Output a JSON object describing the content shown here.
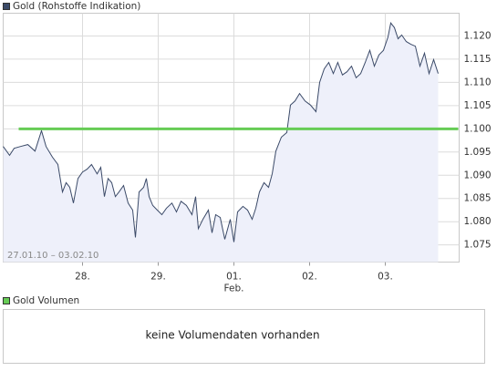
{
  "chart_data": {
    "type": "line",
    "date_range": "27.01.10 – 03.02.10",
    "x": [
      -0.048,
      0.036,
      0.096,
      0.181,
      0.277,
      0.373,
      0.458,
      0.518,
      0.602,
      0.675,
      0.735,
      0.783,
      0.831,
      0.88,
      0.94,
      1.0,
      1.06,
      1.12,
      1.193,
      1.241,
      1.289,
      1.337,
      1.386,
      1.434,
      1.482,
      1.542,
      1.602,
      1.663,
      1.699,
      1.747,
      1.807,
      1.843,
      1.88,
      1.928,
      1.988,
      2.048,
      2.108,
      2.181,
      2.241,
      2.301,
      2.373,
      2.446,
      2.494,
      2.53,
      2.59,
      2.663,
      2.711,
      2.759,
      2.819,
      2.88,
      2.952,
      3.0,
      3.048,
      3.12,
      3.181,
      3.241,
      3.289,
      3.337,
      3.398,
      3.458,
      3.506,
      3.554,
      3.627,
      3.699,
      3.747,
      3.807,
      3.867,
      3.94,
      4.012,
      4.084,
      4.133,
      4.193,
      4.253,
      4.313,
      4.373,
      4.434,
      4.494,
      4.554,
      4.614,
      4.675,
      4.735,
      4.795,
      4.855,
      4.916,
      4.976,
      5.036,
      5.072,
      5.12,
      5.169,
      5.217,
      5.277,
      5.337,
      5.398,
      5.458,
      5.518,
      5.578,
      5.639,
      5.699
    ],
    "series": [
      {
        "name": "Gold (Rohstoffe Indikation)",
        "color": "#3b4a68",
        "fill": "#eef0fa",
        "values": [
          1.0962,
          1.0943,
          1.0958,
          1.0962,
          1.0966,
          1.0952,
          1.0996,
          1.0962,
          1.0939,
          1.0923,
          1.0864,
          1.0884,
          1.0874,
          1.084,
          1.0893,
          1.0907,
          1.0913,
          1.0923,
          1.0903,
          1.0917,
          1.0854,
          1.0893,
          1.0884,
          1.0854,
          1.0864,
          1.0878,
          1.084,
          1.0825,
          1.0766,
          1.0864,
          1.0874,
          1.0893,
          1.0854,
          1.0835,
          1.0825,
          1.0815,
          1.0829,
          1.084,
          1.0821,
          1.0844,
          1.0835,
          1.0815,
          1.0854,
          1.0785,
          1.0805,
          1.0825,
          1.0776,
          1.0815,
          1.0809,
          1.0762,
          1.0805,
          1.0756,
          1.0821,
          1.0833,
          1.0825,
          1.0805,
          1.0829,
          1.0864,
          1.0884,
          1.0874,
          1.0903,
          1.0952,
          1.0982,
          1.0992,
          1.1051,
          1.106,
          1.1076,
          1.106,
          1.1051,
          1.1037,
          1.11,
          1.1129,
          1.1143,
          1.1119,
          1.1143,
          1.1116,
          1.1123,
          1.1135,
          1.111,
          1.1119,
          1.1143,
          1.1169,
          1.1135,
          1.1159,
          1.1169,
          1.1198,
          1.1228,
          1.1218,
          1.1194,
          1.1202,
          1.1188,
          1.1182,
          1.1178,
          1.1135,
          1.1163,
          1.1119,
          1.1149,
          1.1119
        ]
      }
    ],
    "reference_line": {
      "value": 1.1,
      "color": "#66cc55"
    },
    "xlim": [
      -0.048,
      5.976
    ],
    "xticks": [
      {
        "value": 1,
        "label": "28."
      },
      {
        "value": 2,
        "label": "29."
      },
      {
        "value": 3,
        "label": "01."
      },
      {
        "value": 4,
        "label": "02."
      },
      {
        "value": 5,
        "label": "03."
      }
    ],
    "month_label": "Feb.",
    "ylim": [
      1.0713,
      1.1249
    ],
    "yticks": [
      1.075,
      {
        "value": 1.08,
        "label": "1.080"
      },
      1.085,
      {
        "value": 1.09,
        "label": "1.090"
      },
      1.095,
      {
        "value": 1.1,
        "label": "1.100"
      },
      1.105,
      {
        "value": 1.11,
        "label": "1.110"
      },
      1.115,
      {
        "value": 1.12,
        "label": "1.120"
      }
    ],
    "grid": true
  },
  "volume_panel": {
    "legend": "Gold Volumen",
    "color": "#66cc55",
    "message": "keine Volumendaten vorhanden"
  }
}
